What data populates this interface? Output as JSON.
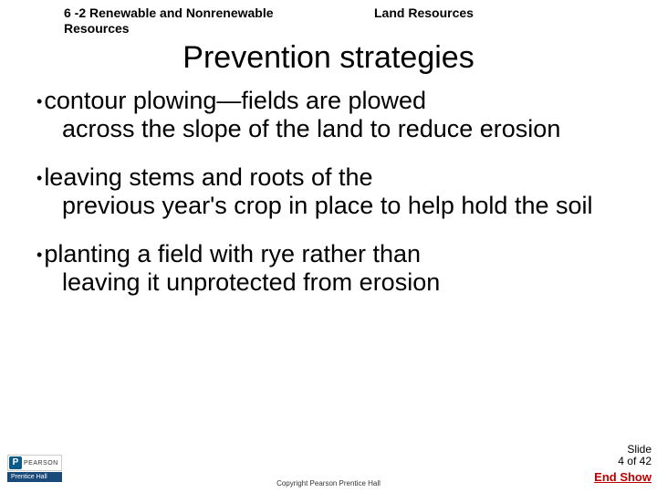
{
  "header": {
    "left": "6 -2 Renewable and Nonrenewable Resources",
    "right": "Land Resources"
  },
  "title": "Prevention strategies",
  "bullets": [
    {
      "first": "contour plowing—fields are plowed",
      "rest": "across the slope of the land to reduce erosion"
    },
    {
      "first": "leaving stems and roots of the",
      "rest": "previous year's crop in place to help hold the soil"
    },
    {
      "first": "planting a field with rye rather than",
      "rest": "leaving it unprotected from erosion"
    }
  ],
  "logo": {
    "brand_letter": "P",
    "brand_name": "PEARSON",
    "subbrand": "Prentice Hall"
  },
  "copyright": "Copyright Pearson Prentice Hall",
  "footer": {
    "slide_label": "Slide",
    "slide_count": "4 of 42",
    "end_show": "End Show"
  },
  "colors": {
    "end_show": "#c00000",
    "pearson_blue": "#0a5a8a",
    "prentice_blue": "#1a4a7a",
    "text": "#000000",
    "background": "#ffffff"
  },
  "fonts": {
    "header_size_pt": 14,
    "title_size_pt": 34,
    "body_size_pt": 27,
    "footer_size_pt": 12,
    "copyright_size_pt": 8
  }
}
